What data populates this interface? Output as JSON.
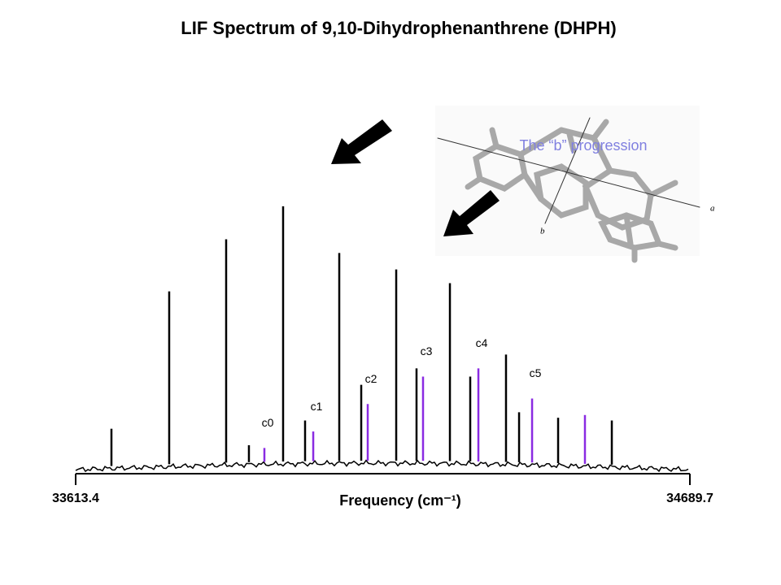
{
  "chart_data": {
    "type": "stick",
    "title": "LIF Spectrum of 9,10-Dihydrophenanthrene (DHPH)",
    "x_label": "Frequency (cm⁻¹)",
    "xlim": [
      33613.4,
      34689.7
    ],
    "xticks": [
      33613.4,
      34689.7
    ],
    "ylim": [
      0,
      1
    ],
    "annotation": "The “b” progression",
    "molecule_axes": [
      "a",
      "b"
    ],
    "peak_labels": [
      "c0",
      "c1",
      "c2",
      "c3",
      "c4",
      "c5"
    ],
    "series": [
      {
        "color": "#000000",
        "x": [
          33676.1,
          33777.3,
          33877.1,
          33917.0,
          33976.9,
          34015.4,
          34075.3,
          34113.8,
          34175.1,
          34210.7,
          34269.2,
          34304.8,
          34367.5,
          34390.4,
          34458.8,
          34552.9
        ],
        "values": [
          0.14,
          0.64,
          0.83,
          0.08,
          0.95,
          0.17,
          0.78,
          0.3,
          0.72,
          0.36,
          0.67,
          0.33,
          0.41,
          0.2,
          0.18,
          0.17
        ]
      },
      {
        "color": "#8a2be2",
        "x": [
          33944.1,
          34029.7,
          34125.2,
          34222.1,
          34319.1,
          34413.2,
          34505.8
        ],
        "values": [
          0.07,
          0.13,
          0.23,
          0.33,
          0.36,
          0.25,
          0.19
        ]
      }
    ]
  }
}
